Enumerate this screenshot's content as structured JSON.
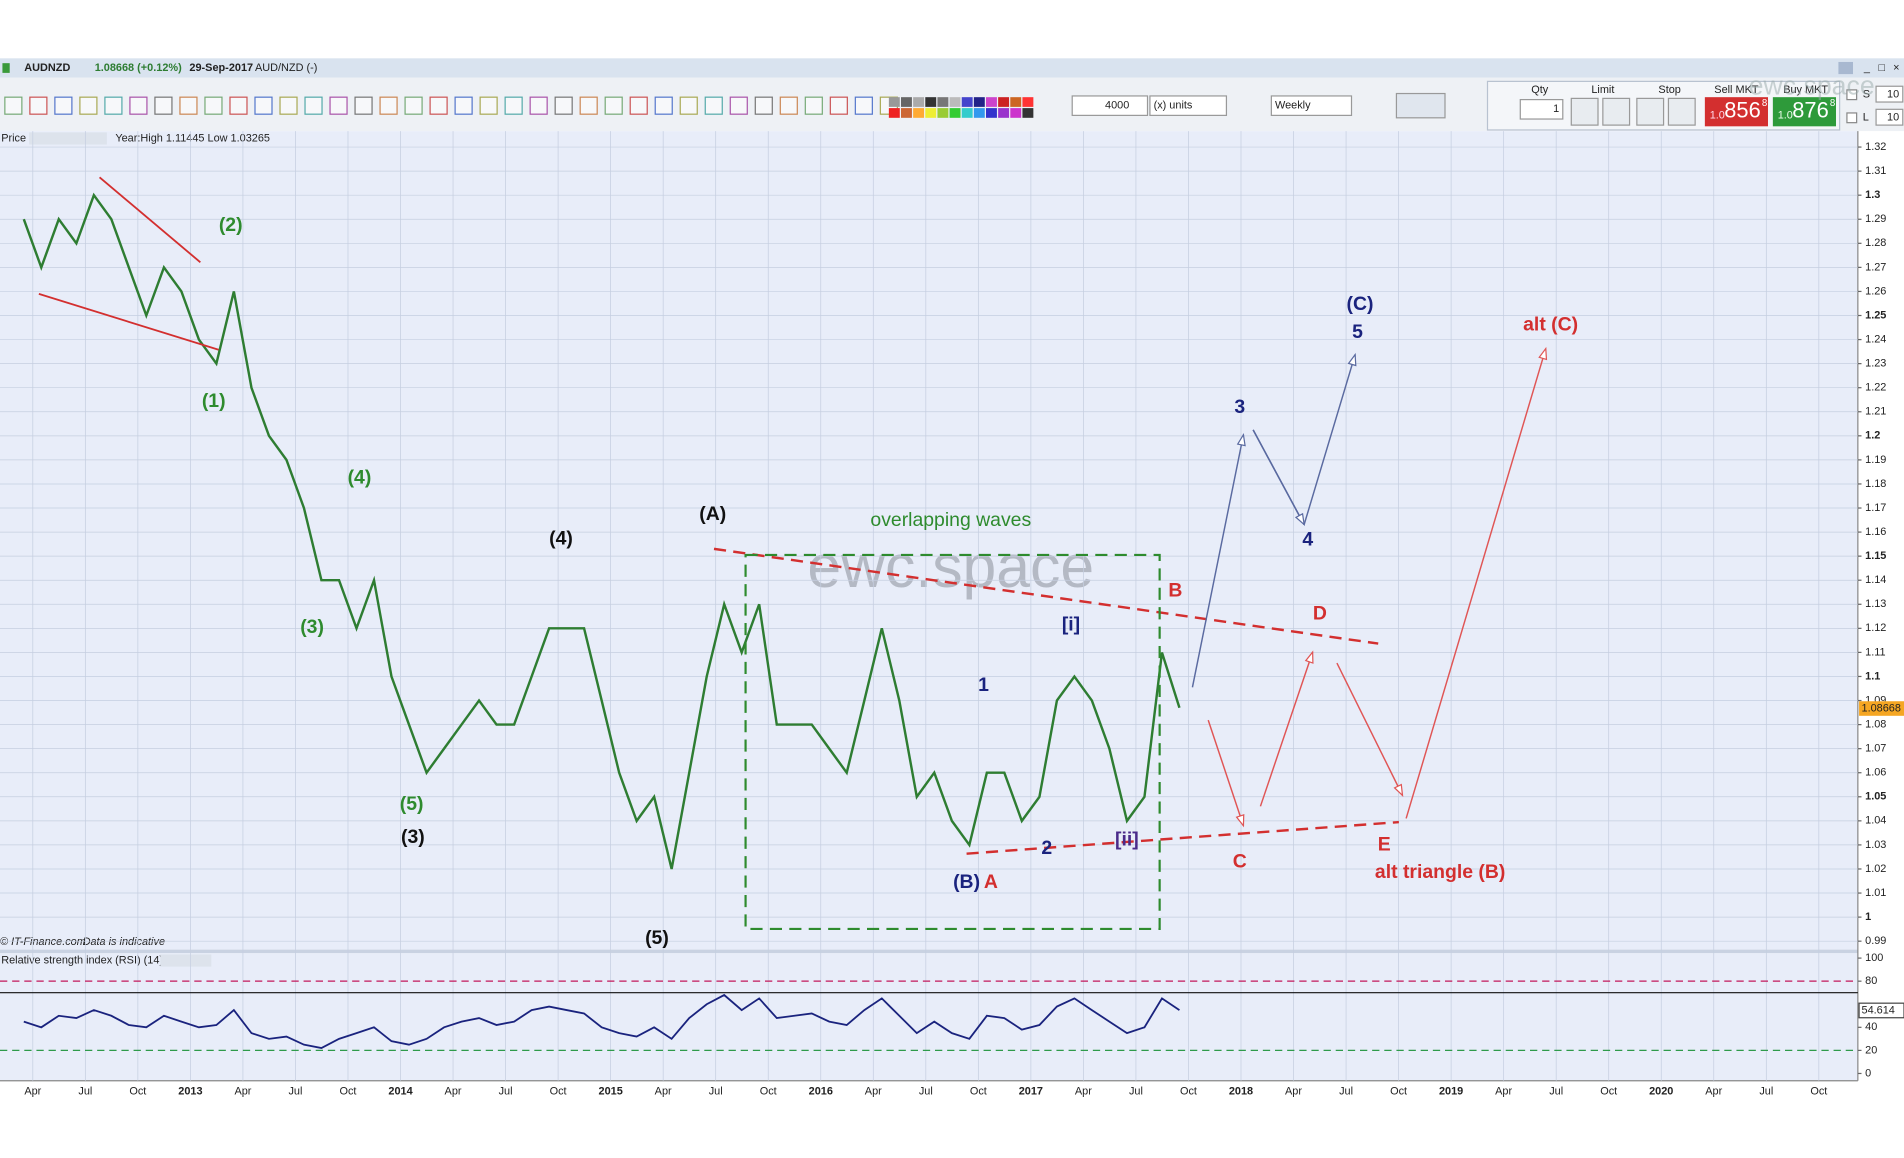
{
  "window": {
    "symbol": "AUDNZD",
    "last": "1.08668 (+0.12%)",
    "date": "29-Sep-2017",
    "name": "AUD/NZD (-)"
  },
  "toolbar": {
    "quantity": "4000",
    "units": "(x) units",
    "period": "Weekly",
    "qty_label": "Qty",
    "qty": "1",
    "limit": "Limit",
    "stop": "Stop",
    "sell_label": "Sell MKT",
    "buy_label": "Buy MKT",
    "sell": {
      "prefix": "1.0",
      "big": "856",
      "pip": "8"
    },
    "buy": {
      "prefix": "1.0",
      "big": "876",
      "pip": "8"
    },
    "s": "S",
    "l": "L",
    "s_qty": "10",
    "l_qty": "10"
  },
  "panel": {
    "price_label": "Price",
    "range": "Year:High 1.11445 Low 1.03265",
    "copyright": "© IT-Finance.com",
    "disclaimer": "Data is indicative",
    "rsi_label": "Relative strength index (RSI) (14)",
    "watermark": "ewc.space"
  },
  "chart_data": [
    {
      "type": "line",
      "x": [
        "2012-03",
        "2012-04",
        "2012-05",
        "2012-06",
        "2012-07",
        "2012-08",
        "2012-09",
        "2012-10",
        "2012-11",
        "2012-12",
        "2013-01",
        "2013-02",
        "2013-03",
        "2013-04",
        "2013-05",
        "2013-06",
        "2013-07",
        "2013-08",
        "2013-09",
        "2013-10",
        "2013-11",
        "2013-12",
        "2014-01",
        "2014-02",
        "2014-03",
        "2014-04",
        "2014-05",
        "2014-06",
        "2014-07",
        "2014-08",
        "2014-09",
        "2014-10",
        "2014-11",
        "2014-12",
        "2015-01",
        "2015-02",
        "2015-03",
        "2015-04",
        "2015-05",
        "2015-06",
        "2015-07",
        "2015-08",
        "2015-09",
        "2015-10",
        "2015-11",
        "2015-12",
        "2016-01",
        "2016-02",
        "2016-03",
        "2016-04",
        "2016-05",
        "2016-06",
        "2016-07",
        "2016-08",
        "2016-09",
        "2016-10",
        "2016-11",
        "2016-12",
        "2017-01",
        "2017-02",
        "2017-03",
        "2017-04",
        "2017-05",
        "2017-06",
        "2017-07",
        "2017-08",
        "2017-09"
      ],
      "series": [
        {
          "name": "AUDNZD",
          "color": "#2e7d32",
          "values": [
            1.29,
            1.27,
            1.29,
            1.28,
            1.3,
            1.29,
            1.27,
            1.25,
            1.27,
            1.26,
            1.24,
            1.23,
            1.26,
            1.22,
            1.2,
            1.19,
            1.17,
            1.14,
            1.14,
            1.12,
            1.14,
            1.1,
            1.08,
            1.06,
            1.07,
            1.08,
            1.09,
            1.08,
            1.08,
            1.1,
            1.12,
            1.12,
            1.12,
            1.09,
            1.06,
            1.04,
            1.05,
            1.02,
            1.06,
            1.1,
            1.13,
            1.11,
            1.13,
            1.08,
            1.08,
            1.08,
            1.07,
            1.06,
            1.09,
            1.12,
            1.09,
            1.05,
            1.06,
            1.04,
            1.03,
            1.06,
            1.06,
            1.04,
            1.05,
            1.09,
            1.1,
            1.09,
            1.07,
            1.04,
            1.05,
            1.11,
            1.087
          ]
        }
      ],
      "last_price": 1.08668,
      "ylim": [
        0.9865,
        1.3266
      ],
      "yticks": [
        0.99,
        1,
        1.01,
        1.02,
        1.03,
        1.04,
        1.05,
        1.06,
        1.07,
        1.08,
        1.09,
        1.1,
        1.11,
        1.12,
        1.13,
        1.14,
        1.15,
        1.16,
        1.17,
        1.18,
        1.19,
        1.2,
        1.21,
        1.22,
        1.23,
        1.24,
        1.25,
        1.26,
        1.27,
        1.28,
        1.29,
        1.3,
        1.31,
        1.32
      ],
      "xticks": [
        {
          "value": "2012-04",
          "label": "Apr"
        },
        {
          "value": "2012-07",
          "label": "Jul"
        },
        {
          "value": "2012-10",
          "label": "Oct"
        },
        {
          "value": "2013-01",
          "label": "2013"
        },
        {
          "value": "2013-04",
          "label": "Apr"
        },
        {
          "value": "2013-07",
          "label": "Jul"
        },
        {
          "value": "2013-10",
          "label": "Oct"
        },
        {
          "value": "2014-01",
          "label": "2014"
        },
        {
          "value": "2014-04",
          "label": "Apr"
        },
        {
          "value": "2014-07",
          "label": "Jul"
        },
        {
          "value": "2014-10",
          "label": "Oct"
        },
        {
          "value": "2015-01",
          "label": "2015"
        },
        {
          "value": "2015-04",
          "label": "Apr"
        },
        {
          "value": "2015-07",
          "label": "Jul"
        },
        {
          "value": "2015-10",
          "label": "Oct"
        },
        {
          "value": "2016-01",
          "label": "2016"
        },
        {
          "value": "2016-04",
          "label": "Apr"
        },
        {
          "value": "2016-07",
          "label": "Jul"
        },
        {
          "value": "2016-10",
          "label": "Oct"
        },
        {
          "value": "2017-01",
          "label": "2017"
        },
        {
          "value": "2017-04",
          "label": "Apr"
        },
        {
          "value": "2017-07",
          "label": "Jul"
        },
        {
          "value": "2017-10",
          "label": "Oct"
        },
        {
          "value": "2018-01",
          "label": "2018"
        },
        {
          "value": "2018-04",
          "label": "Apr"
        },
        {
          "value": "2018-07",
          "label": "Jul"
        },
        {
          "value": "2018-10",
          "label": "Oct"
        },
        {
          "value": "2019-01",
          "label": "2019"
        },
        {
          "value": "2019-04",
          "label": "Apr"
        },
        {
          "value": "2019-07",
          "label": "Jul"
        },
        {
          "value": "2019-10",
          "label": "Oct"
        },
        {
          "value": "2020-01",
          "label": "2020"
        },
        {
          "value": "2020-04",
          "label": "Apr"
        },
        {
          "value": "2020-07",
          "label": "Jul"
        },
        {
          "value": "2020-10",
          "label": "Oct"
        }
      ],
      "grid": true,
      "annotations": [
        {
          "text": "(2)",
          "color": "#2e8b2e"
        },
        {
          "text": "(1)",
          "color": "#2e8b2e"
        },
        {
          "text": "(4)",
          "color": "#2e8b2e"
        },
        {
          "text": "(3)",
          "color": "#2e8b2e"
        },
        {
          "text": "(5)",
          "color": "#2e8b2e"
        },
        {
          "text": "(3)",
          "color": "#111111"
        },
        {
          "text": "(4)",
          "color": "#111111"
        },
        {
          "text": "(A)",
          "color": "#111111"
        },
        {
          "text": "(5)",
          "color": "#111111"
        },
        {
          "text": "overlapping waves",
          "color": "#2e8b2e"
        },
        {
          "text": "1",
          "color": "#1a237e"
        },
        {
          "text": "2",
          "color": "#1a237e"
        },
        {
          "text": "[i]",
          "color": "#1a237e"
        },
        {
          "text": "[ii]",
          "color": "#4a2a8a"
        },
        {
          "text": "(B)",
          "color": "#1a237e"
        },
        {
          "text": "3",
          "color": "#1a237e"
        },
        {
          "text": "4",
          "color": "#1a237e"
        },
        {
          "text": "(C)",
          "color": "#1a237e"
        },
        {
          "text": "5",
          "color": "#1a237e"
        },
        {
          "text": "A",
          "color": "#d32f2f"
        },
        {
          "text": "B",
          "color": "#d32f2f"
        },
        {
          "text": "C",
          "color": "#d32f2f"
        },
        {
          "text": "D",
          "color": "#d32f2f"
        },
        {
          "text": "E",
          "color": "#d32f2f"
        },
        {
          "text": "alt triangle (B)",
          "color": "#d32f2f"
        },
        {
          "text": "alt (C)",
          "color": "#d32f2f"
        }
      ]
    },
    {
      "type": "line",
      "x": [
        "2012-03",
        "2012-04",
        "2012-05",
        "2012-06",
        "2012-07",
        "2012-08",
        "2012-09",
        "2012-10",
        "2012-11",
        "2012-12",
        "2013-01",
        "2013-02",
        "2013-03",
        "2013-04",
        "2013-05",
        "2013-06",
        "2013-07",
        "2013-08",
        "2013-09",
        "2013-10",
        "2013-11",
        "2013-12",
        "2014-01",
        "2014-02",
        "2014-03",
        "2014-04",
        "2014-05",
        "2014-06",
        "2014-07",
        "2014-08",
        "2014-09",
        "2014-10",
        "2014-11",
        "2014-12",
        "2015-01",
        "2015-02",
        "2015-03",
        "2015-04",
        "2015-05",
        "2015-06",
        "2015-07",
        "2015-08",
        "2015-09",
        "2015-10",
        "2015-11",
        "2015-12",
        "2016-01",
        "2016-02",
        "2016-03",
        "2016-04",
        "2016-05",
        "2016-06",
        "2016-07",
        "2016-08",
        "2016-09",
        "2016-10",
        "2016-11",
        "2016-12",
        "2017-01",
        "2017-02",
        "2017-03",
        "2017-04",
        "2017-05",
        "2017-06",
        "2017-07",
        "2017-08",
        "2017-09"
      ],
      "series": [
        {
          "name": "RSI",
          "color": "#1a237e",
          "values": [
            45,
            40,
            50,
            48,
            55,
            50,
            42,
            40,
            50,
            45,
            40,
            42,
            55,
            35,
            30,
            32,
            25,
            22,
            30,
            35,
            40,
            28,
            25,
            30,
            40,
            45,
            48,
            42,
            45,
            55,
            58,
            55,
            52,
            40,
            35,
            32,
            40,
            30,
            48,
            60,
            68,
            55,
            65,
            48,
            50,
            52,
            45,
            42,
            55,
            65,
            50,
            35,
            45,
            35,
            30,
            50,
            48,
            38,
            42,
            58,
            65,
            55,
            45,
            35,
            40,
            65,
            55
          ]
        }
      ],
      "current": 54.614,
      "ylim": [
        -6.3,
        104.2
      ],
      "yticks": [
        0,
        20,
        40,
        80,
        100
      ],
      "levels": [
        {
          "value": 80,
          "color": "#c2185b",
          "style": "dashed"
        },
        {
          "value": 70,
          "color": "#111111",
          "style": "solid"
        },
        {
          "value": 20,
          "color": "#2e9a4a",
          "style": "dashed"
        }
      ]
    }
  ]
}
